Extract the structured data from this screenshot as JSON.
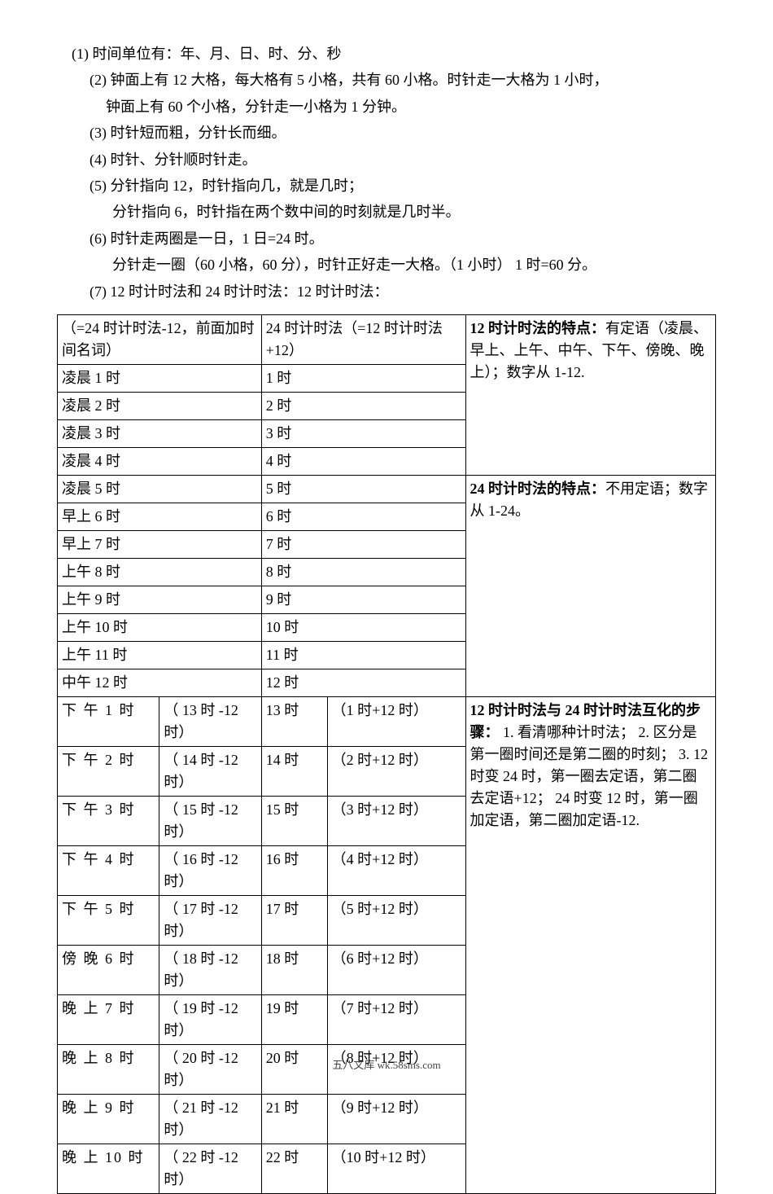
{
  "list": {
    "i1": "(1) 时间单位有：年、月、日、时、分、秒",
    "i2": "(2) 钟面上有 12 大格，每大格有 5 小格，共有 60 小格。时针走一大格为 1 小时，",
    "i2b": "钟面上有 60 个小格，分针走一小格为 1 分钟。",
    "i3": "(3) 时针短而粗，分针长而细。",
    "i4": "(4) 时针、分针顺时针走。",
    "i5": "(5) 分针指向 12，时针指向几，就是几时；",
    "i5b": "分针指向 6，时针指在两个数中间的时刻就是几时半。",
    "i6": "(6)  时针走两圈是一日，1 日=24 时。",
    "i6b": "分针走一圈（60 小格，60 分），时针正好走一大格。（1 小时） 1 时=60 分。",
    "i7": "(7)   12 时计时法和 24 时计时法：12 时计时法："
  },
  "table": {
    "header": {
      "h12a": "（=24 时计时法-12，前面加时间名词）",
      "h24a": "24 时计时法（=12 时计时法+12）"
    },
    "rows": [
      {
        "c12a": "凌晨 1 时",
        "c12b": "",
        "c24a": "1 时",
        "c24b": ""
      },
      {
        "c12a": "凌晨 2 时",
        "c12b": "",
        "c24a": " 2 时",
        "c24b": ""
      },
      {
        "c12a": "凌晨 3 时",
        "c12b": "",
        "c24a": "3 时",
        "c24b": ""
      },
      {
        "c12a": "凌晨 4 时",
        "c12b": "",
        "c24a": "4 时",
        "c24b": ""
      },
      {
        "c12a": "凌晨 5 时",
        "c12b": "",
        "c24a": "5 时",
        "c24b": ""
      },
      {
        "c12a": "早上 6 时",
        "c12b": "",
        "c24a": "6 时",
        "c24b": ""
      },
      {
        "c12a": "早上 7 时",
        "c12b": "",
        "c24a": "7 时",
        "c24b": ""
      },
      {
        "c12a": "上午 8 时",
        "c12b": "",
        "c24a": "8 时",
        "c24b": ""
      },
      {
        "c12a": "上午 9 时",
        "c12b": "",
        "c24a": "9 时",
        "c24b": ""
      },
      {
        "c12a": "上午 10 时",
        "c12b": "",
        "c24a": "10 时",
        "c24b": ""
      },
      {
        "c12a": "上午 11 时",
        "c12b": "",
        "c24a": "11 时",
        "c24b": ""
      },
      {
        "c12a": "中午 12 时",
        "c12b": "",
        "c24a": "12 时",
        "c24b": ""
      },
      {
        "c12a": "下 午 1 时",
        "c12b": "（ 13 时 -12 时）",
        "c24a": "13 时",
        "c24b": "（1 时+12 时）"
      },
      {
        "c12a": "下 午 2 时",
        "c12b": "（ 14 时 -12 时）",
        "c24a": "14 时",
        "c24b": "（2 时+12 时）"
      },
      {
        "c12a": "下 午 3 时",
        "c12b": "（ 15 时 -12 时）",
        "c24a": "15 时",
        "c24b": "（3 时+12 时）"
      },
      {
        "c12a": "下 午 4 时",
        "c12b": "（ 16 时 -12 时）",
        "c24a": "16 时",
        "c24b": "（4 时+12 时）"
      },
      {
        "c12a": "下 午 5 时",
        "c12b": "（ 17 时 -12 时）",
        "c24a": "17 时",
        "c24b": "（5 时+12 时）"
      },
      {
        "c12a": "傍 晚 6 时",
        "c12b": "（ 18 时 -12 时）",
        "c24a": "18 时",
        "c24b": "（6 时+12 时）"
      },
      {
        "c12a": "晚 上 7 时",
        "c12b": "（ 19 时 -12 时）",
        "c24a": "19 时",
        "c24b": "（7 时+12 时）"
      },
      {
        "c12a": "晚 上 8 时",
        "c12b": "（ 20 时 -12 时）",
        "c24a": "20 时",
        "c24b": "（8 时+12 时）"
      },
      {
        "c12a": "晚 上 9 时",
        "c12b": "（ 21 时 -12 时）",
        "c24a": "21 时",
        "c24b": "（9 时+12 时）"
      },
      {
        "c12a": "晚 上 10 时",
        "c12b": "（ 22 时 -12 时）",
        "c24a": "22 时",
        "c24b": "（10 时+12 时）"
      }
    ],
    "notes": {
      "n1_bold": "12 时计时法的特点：",
      "n1_rest": "有定语（凌晨、早上、上午、中午、下午、傍晚、晚上）；数字从 1-12.",
      "n2_bold": "24 时计时法的特点：",
      "n2_rest": "不用定语；数字从 1-24。",
      "n3_bold": "12 时计时法与 24 时计时法互化的步骤：",
      "n3_rest": " 1. 看清哪种计时法； 2. 区分是第一圈时间还是第二圈的时刻； 3. 12 时变 24 时，第一圈去定语，第二圈去定语+12； 24 时变 12 时，第一圈加定语，第二圈加定语-12."
    }
  },
  "footer": "五八文库 wk.58sms.com",
  "layout": {
    "rowspans": {
      "n1": 5,
      "n2": 8,
      "n3": 10
    }
  }
}
